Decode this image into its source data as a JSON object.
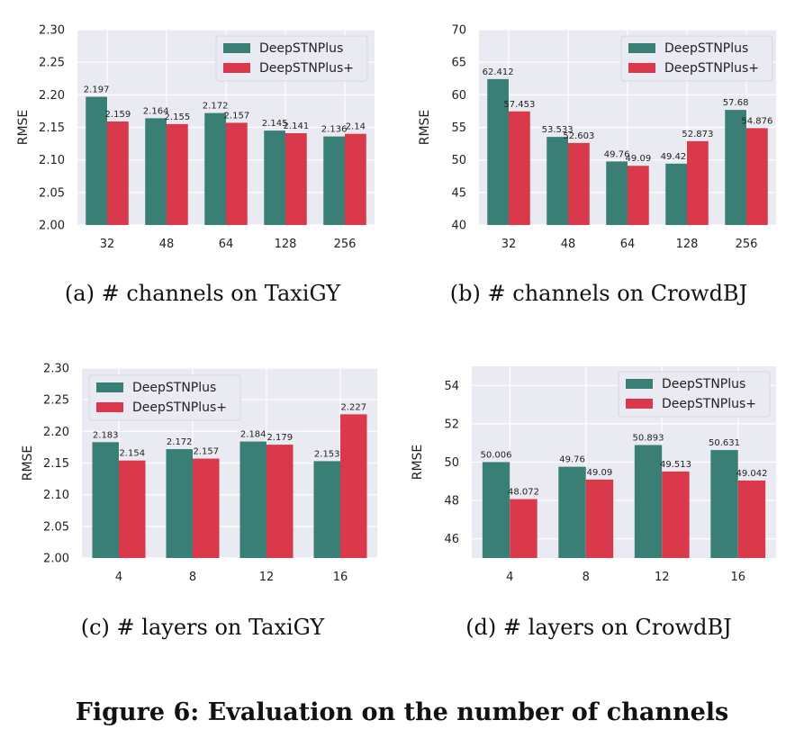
{
  "figure_caption": "Figure 6: Evaluation on the number of channels",
  "colors": {
    "DeepSTNPlus": "#3a7f76",
    "DeepSTNPlus+": "#d9394a",
    "plot_bg": "#eaeaf2",
    "grid": "#ffffff"
  },
  "panels": [
    {
      "caption": "(a)  # channels on TaxiGY",
      "ylabel": "RMSE",
      "legend_position": "top-right"
    },
    {
      "caption": "(b)  # channels on CrowdBJ",
      "ylabel": "RMSE",
      "legend_position": "top-right"
    },
    {
      "caption": "(c)  # layers on TaxiGY",
      "ylabel": "RMSE",
      "legend_position": "top-left"
    },
    {
      "caption": "(d)  # layers on CrowdBJ",
      "ylabel": "RMSE",
      "legend_position": "top-right"
    }
  ],
  "chart_data": [
    {
      "type": "bar",
      "title": "",
      "xlabel": "",
      "ylabel": "RMSE",
      "categories": [
        "32",
        "48",
        "64",
        "128",
        "256"
      ],
      "ylim": [
        2.0,
        2.3
      ],
      "yticks": [
        "2.00",
        "2.05",
        "2.10",
        "2.15",
        "2.20",
        "2.25",
        "2.30"
      ],
      "grid": true,
      "legend": "top-right",
      "series": [
        {
          "name": "DeepSTNPlus",
          "values": [
            2.197,
            2.164,
            2.172,
            2.145,
            2.136
          ],
          "labels": [
            "2.197",
            "2.164",
            "2.172",
            "2.145",
            "2.136"
          ]
        },
        {
          "name": "DeepSTNPlus+",
          "values": [
            2.159,
            2.155,
            2.157,
            2.141,
            2.14
          ],
          "labels": [
            "2.159",
            "2.155",
            "2.157",
            "2.141",
            "2.14"
          ]
        }
      ]
    },
    {
      "type": "bar",
      "title": "",
      "xlabel": "",
      "ylabel": "RMSE",
      "categories": [
        "32",
        "48",
        "64",
        "128",
        "256"
      ],
      "ylim": [
        40,
        70
      ],
      "yticks": [
        "40",
        "45",
        "50",
        "55",
        "60",
        "65",
        "70"
      ],
      "grid": true,
      "legend": "top-right",
      "series": [
        {
          "name": "DeepSTNPlus",
          "values": [
            62.412,
            53.533,
            49.76,
            49.422,
            57.68
          ],
          "labels": [
            "62.412",
            "53.533",
            "49.76",
            "49.422",
            "57.68"
          ]
        },
        {
          "name": "DeepSTNPlus+",
          "values": [
            57.453,
            52.603,
            49.09,
            52.873,
            54.876
          ],
          "labels": [
            "57.453",
            "52.603",
            "49.09",
            "52.873",
            "54.876"
          ]
        }
      ]
    },
    {
      "type": "bar",
      "title": "",
      "xlabel": "",
      "ylabel": "RMSE",
      "categories": [
        "4",
        "8",
        "12",
        "16"
      ],
      "ylim": [
        2.0,
        2.3
      ],
      "yticks": [
        "2.00",
        "2.05",
        "2.10",
        "2.15",
        "2.20",
        "2.25",
        "2.30"
      ],
      "grid": true,
      "legend": "top-left",
      "series": [
        {
          "name": "DeepSTNPlus",
          "values": [
            2.183,
            2.172,
            2.184,
            2.153
          ],
          "labels": [
            "2.183",
            "2.172",
            "2.184",
            "2.153"
          ]
        },
        {
          "name": "DeepSTNPlus+",
          "values": [
            2.154,
            2.157,
            2.179,
            2.227
          ],
          "labels": [
            "2.154",
            "2.157",
            "2.179",
            "2.227"
          ]
        }
      ]
    },
    {
      "type": "bar",
      "title": "",
      "xlabel": "",
      "ylabel": "RMSE",
      "categories": [
        "4",
        "8",
        "12",
        "16"
      ],
      "ylim": [
        45,
        55
      ],
      "yticks": [
        "46",
        "48",
        "50",
        "52",
        "54"
      ],
      "grid": true,
      "legend": "top-right",
      "series": [
        {
          "name": "DeepSTNPlus",
          "values": [
            50.006,
            49.76,
            50.893,
            50.631
          ],
          "labels": [
            "50.006",
            "49.76",
            "50.893",
            "50.631"
          ]
        },
        {
          "name": "DeepSTNPlus+",
          "values": [
            48.072,
            49.09,
            49.513,
            49.042
          ],
          "labels": [
            "48.072",
            "49.09",
            "49.513",
            "49.042"
          ]
        }
      ]
    }
  ]
}
